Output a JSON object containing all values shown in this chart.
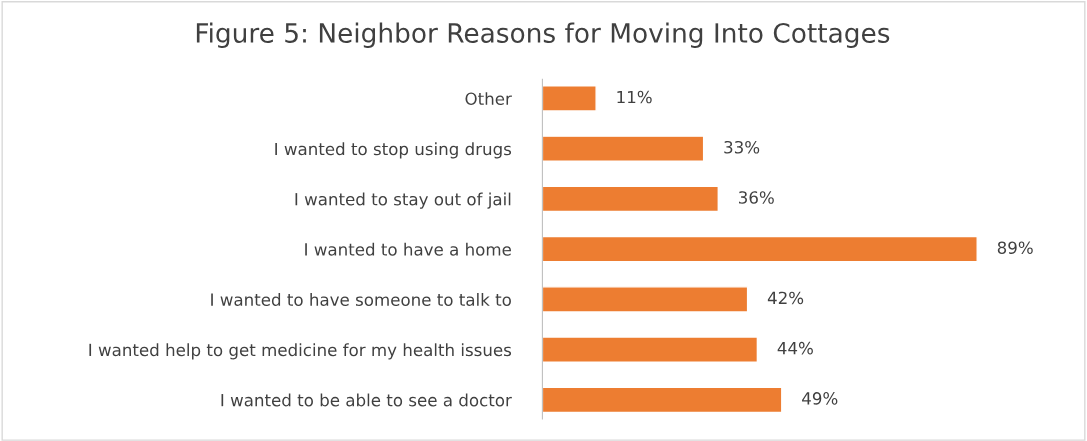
{
  "chart_data": {
    "type": "bar",
    "orientation": "horizontal",
    "title": "Figure 5: Neighbor Reasons for Moving Into Cottages",
    "categories": [
      "Other",
      "I wanted to stop using drugs",
      "I wanted to stay out of jail",
      "I wanted to have a home",
      "I wanted to have someone to talk to",
      "I wanted help to get medicine for my health issues",
      "I wanted to be able to see a doctor"
    ],
    "values": [
      11,
      33,
      36,
      89,
      42,
      44,
      49
    ],
    "value_labels": [
      "11%",
      "33%",
      "36%",
      "89%",
      "42%",
      "44%",
      "49%"
    ],
    "color": "#ed7d31",
    "grid": false,
    "legend": false
  }
}
